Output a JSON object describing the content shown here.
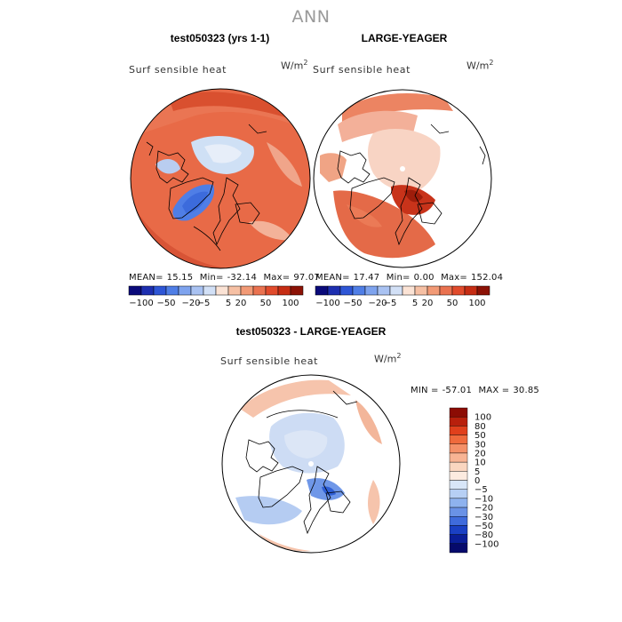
{
  "figure": {
    "title": "ANN",
    "variable": "Surf  sensible  heat",
    "units_base": "W/m",
    "units_exp": "2"
  },
  "panels": [
    {
      "title": "test050323 (yrs 1-1)",
      "variable": "Surf  sensible  heat",
      "units_base": "W/m",
      "units_exp": "2",
      "stats": {
        "mean_label": "MEAN=",
        "mean": "15.15",
        "min_label": "Min=",
        "min": "-32.14",
        "max_label": "Max=",
        "max": "97.07"
      }
    },
    {
      "title": "LARGE-YEAGER",
      "variable": "Surf  sensible  heat",
      "units_base": "W/m",
      "units_exp": "2",
      "stats": {
        "mean_label": "MEAN=",
        "mean": "17.47",
        "min_label": "Min=",
        "min": "0.00",
        "max_label": "Max=",
        "max": "152.04"
      }
    },
    {
      "title": "test050323 - LARGE-YEAGER",
      "variable": "Surf  sensible  heat",
      "units_base": "W/m",
      "units_exp": "2",
      "stats": {
        "min_label": "MIN =",
        "min": "-57.01",
        "max_label": "MAX =",
        "max": "30.85"
      }
    }
  ],
  "colorbar_top": {
    "tick_labels": [
      "-100",
      "-50",
      "-20",
      "-5",
      "5",
      "20",
      "50",
      "100"
    ],
    "colors": [
      "#0a0a7a",
      "#1d2fb0",
      "#2e56d6",
      "#4f7ee6",
      "#7ea3ee",
      "#a9c2f2",
      "#d2e0f6",
      "#fbe3d5",
      "#f6c0a4",
      "#f29a76",
      "#ea7250",
      "#e14b2c",
      "#c62d14",
      "#8c1206"
    ]
  },
  "colorbar_diff": {
    "levels": [
      "100",
      "80",
      "50",
      "30",
      "20",
      "10",
      "5",
      "0",
      "-5",
      "-10",
      "-20",
      "-30",
      "-50",
      "-80",
      "-100"
    ],
    "colors": [
      "#8c0c04",
      "#b8200c",
      "#e0401c",
      "#ef6a3c",
      "#f49068",
      "#f8b494",
      "#fad6c0",
      "#fcebe0",
      "#d8e6f8",
      "#b6cff4",
      "#8eb2ee",
      "#6a92e6",
      "#3f6bdc",
      "#1a40c4",
      "#0a1e98",
      "#060a6c"
    ]
  }
}
